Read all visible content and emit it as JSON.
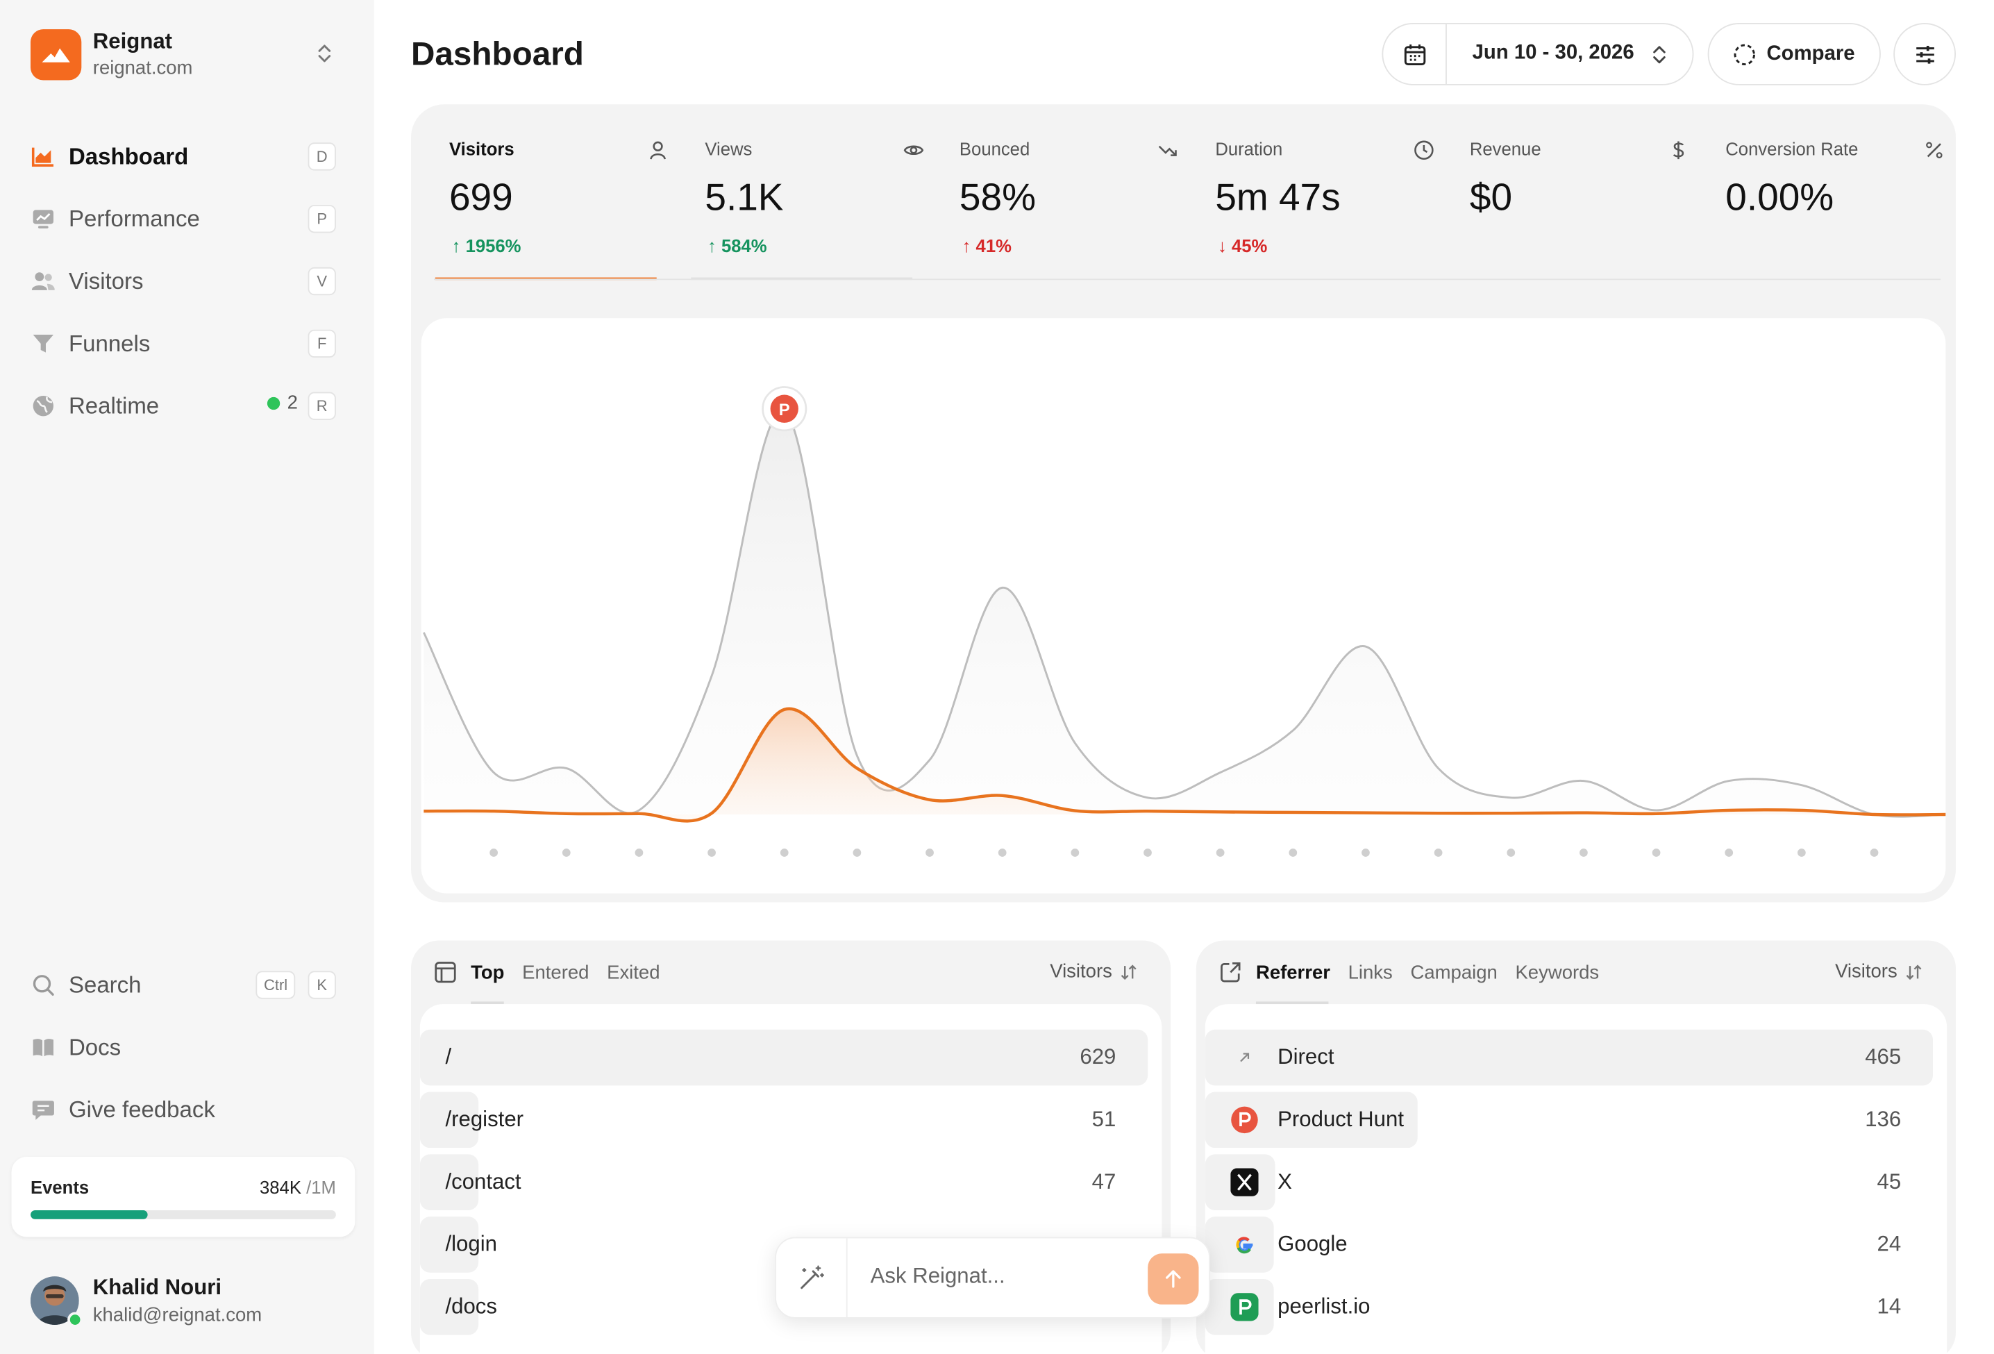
{
  "workspace": {
    "name": "Reignat",
    "domain": "reignat.com"
  },
  "nav": [
    {
      "id": "dashboard",
      "label": "Dashboard",
      "key": "D",
      "icon": "chart-area-icon",
      "active": true
    },
    {
      "id": "performance",
      "label": "Performance",
      "key": "P",
      "icon": "monitor-icon"
    },
    {
      "id": "visitors",
      "label": "Visitors",
      "key": "V",
      "icon": "users-icon"
    },
    {
      "id": "funnels",
      "label": "Funnels",
      "key": "F",
      "icon": "funnel-icon"
    },
    {
      "id": "realtime",
      "label": "Realtime",
      "key": "R",
      "icon": "globe-icon",
      "count": "2"
    }
  ],
  "bottom_nav": {
    "search": {
      "label": "Search",
      "keys": [
        "Ctrl",
        "K"
      ]
    },
    "docs": {
      "label": "Docs"
    },
    "feedback": {
      "label": "Give feedback"
    }
  },
  "events": {
    "label": "Events",
    "used": "384K",
    "limit": "/1M",
    "fraction": 0.384
  },
  "user": {
    "name": "Khalid Nouri",
    "email": "khalid@reignat.com"
  },
  "header": {
    "title": "Dashboard",
    "date_range": "Jun 10 - 30, 2026",
    "compare_label": "Compare"
  },
  "metrics": [
    {
      "label": "Visitors",
      "value": "699",
      "delta": "1956%",
      "direction": "up",
      "icon": "user-icon",
      "selected": true
    },
    {
      "label": "Views",
      "value": "5.1K",
      "delta": "584%",
      "direction": "up",
      "icon": "eye-icon"
    },
    {
      "label": "Bounced",
      "value": "58%",
      "delta": "41%",
      "direction": "up",
      "icon": "trend-down-icon"
    },
    {
      "label": "Duration",
      "value": "5m 47s",
      "delta": "45%",
      "direction": "down",
      "icon": "clock-icon"
    },
    {
      "label": "Revenue",
      "value": "$0",
      "delta": "",
      "icon": "dollar-icon"
    },
    {
      "label": "Conversion Rate",
      "value": "0.00%",
      "delta": "",
      "icon": "percent-icon"
    }
  ],
  "chart_data": {
    "type": "area",
    "ylim": [
      0,
      100
    ],
    "x": [
      1,
      2,
      3,
      4,
      5,
      6,
      7,
      8,
      9,
      10,
      11,
      12,
      13,
      14,
      15,
      16,
      17,
      18,
      19,
      20
    ],
    "grid": false,
    "series": [
      {
        "color": "#bdbdbd",
        "values": [
          10,
          11,
          1,
          33,
          96,
          14,
          13,
          54,
          17,
          4,
          10,
          20,
          40,
          11,
          4,
          8,
          1,
          8,
          7,
          0
        ]
      },
      {
        "color": "#e8731e",
        "values": [
          0.8,
          0.2,
          0.2,
          0.3,
          25,
          11,
          3.5,
          4.5,
          0.9,
          0.8,
          0.6,
          0.5,
          0.4,
          0.3,
          0.3,
          0.4,
          0.2,
          1,
          1,
          0
        ]
      }
    ],
    "annotation": {
      "x": 5,
      "label": "P"
    }
  },
  "pages_card": {
    "tabs": [
      "Top",
      "Entered",
      "Exited"
    ],
    "active_tab": 0,
    "sort_label": "Visitors",
    "rows": [
      {
        "label": "/",
        "value": "629",
        "share": 1.0
      },
      {
        "label": "/register",
        "value": "51",
        "share": 0.081
      },
      {
        "label": "/contact",
        "value": "47",
        "share": 0.075
      },
      {
        "label": "/login",
        "value": "",
        "share": 0.07
      },
      {
        "label": "/docs",
        "value": "",
        "share": 0.065
      }
    ]
  },
  "referrer_card": {
    "tabs": [
      "Referrer",
      "Links",
      "Campaign",
      "Keywords"
    ],
    "active_tab": 0,
    "sort_label": "Visitors",
    "rows": [
      {
        "label": "Direct",
        "value": "465",
        "share": 1.0,
        "icon": "arrow-up-right-icon"
      },
      {
        "label": "Product Hunt",
        "value": "136",
        "share": 0.292,
        "icon": "producthunt-icon"
      },
      {
        "label": "X",
        "value": "45",
        "share": 0.097,
        "icon": "x-logo-icon"
      },
      {
        "label": "Google",
        "value": "24",
        "share": 0.052,
        "icon": "google-icon"
      },
      {
        "label": "peerlist.io",
        "value": "14",
        "share": 0.03,
        "icon": "peerlist-icon"
      }
    ]
  },
  "ask": {
    "placeholder": "Ask Reignat..."
  },
  "colors": {
    "accent": "#f46a1f",
    "up": "#15935e",
    "down": "#d62828",
    "events_bar": "#16a07a"
  }
}
